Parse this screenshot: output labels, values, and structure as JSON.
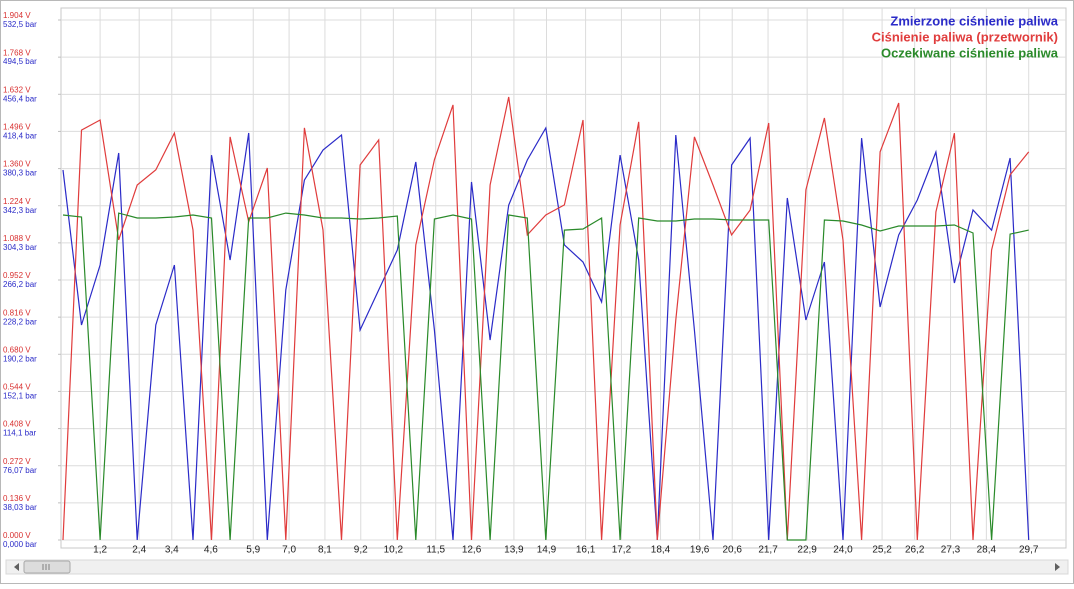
{
  "chart_data": {
    "type": "line",
    "x": [
      0.06,
      0.63,
      1.2,
      1.77,
      2.34,
      2.91,
      3.48,
      4.05,
      4.62,
      5.19,
      5.76,
      6.33,
      6.9,
      7.47,
      8.04,
      8.61,
      9.18,
      9.75,
      10.32,
      10.89,
      11.46,
      12.03,
      12.6,
      13.17,
      13.74,
      14.31,
      14.88,
      15.45,
      16.02,
      16.59,
      17.16,
      17.73,
      18.3,
      18.87,
      19.44,
      20.01,
      20.58,
      21.15,
      21.72,
      22.29,
      22.86,
      23.43,
      24.0,
      24.57,
      25.14,
      25.71,
      26.28,
      26.85,
      27.42,
      27.99,
      28.56,
      29.13,
      29.7
    ],
    "xlim": [
      0,
      30.66
    ],
    "xticks": [
      {
        "value": 1.2,
        "label": "1,2"
      },
      {
        "value": 2.4,
        "label": "2,4"
      },
      {
        "value": 3.4,
        "label": "3,4"
      },
      {
        "value": 4.6,
        "label": "4,6"
      },
      {
        "value": 5.9,
        "label": "5,9"
      },
      {
        "value": 7.0,
        "label": "7,0"
      },
      {
        "value": 8.1,
        "label": "8,1"
      },
      {
        "value": 9.2,
        "label": "9,2"
      },
      {
        "value": 10.2,
        "label": "10,2"
      },
      {
        "value": 11.5,
        "label": "11,5"
      },
      {
        "value": 12.6,
        "label": "12,6"
      },
      {
        "value": 13.9,
        "label": "13,9"
      },
      {
        "value": 14.9,
        "label": "14,9"
      },
      {
        "value": 16.1,
        "label": "16,1"
      },
      {
        "value": 17.2,
        "label": "17,2"
      },
      {
        "value": 18.4,
        "label": "18,4"
      },
      {
        "value": 19.6,
        "label": "19,6"
      },
      {
        "value": 20.6,
        "label": "20,6"
      },
      {
        "value": 21.7,
        "label": "21,7"
      },
      {
        "value": 22.9,
        "label": "22,9"
      },
      {
        "value": 24.0,
        "label": "24,0"
      },
      {
        "value": 25.2,
        "label": "25,2"
      },
      {
        "value": 26.2,
        "label": "26,2"
      },
      {
        "value": 27.3,
        "label": "27,3"
      },
      {
        "value": 28.4,
        "label": "28,4"
      },
      {
        "value": 29.7,
        "label": "29,7"
      }
    ],
    "ylim": [
      0,
      532.5
    ],
    "yticks": [
      {
        "value": 0,
        "label": "0,000 bar"
      },
      {
        "value": 38.03,
        "label": "38,03 bar"
      },
      {
        "value": 76.07,
        "label": "76,07 bar"
      },
      {
        "value": 114.1,
        "label": "114,1 bar"
      },
      {
        "value": 152.1,
        "label": "152,1 bar"
      },
      {
        "value": 190.2,
        "label": "190,2 bar"
      },
      {
        "value": 228.2,
        "label": "228,2 bar"
      },
      {
        "value": 266.2,
        "label": "266,2 bar"
      },
      {
        "value": 304.3,
        "label": "304,3 bar"
      },
      {
        "value": 342.3,
        "label": "342,3 bar"
      },
      {
        "value": 380.3,
        "label": "380,3 bar"
      },
      {
        "value": 418.4,
        "label": "418,4 bar"
      },
      {
        "value": 456.4,
        "label": "456,4 bar"
      },
      {
        "value": 494.5,
        "label": "494,5 bar"
      },
      {
        "value": 532.5,
        "label": "532,5 bar"
      }
    ],
    "y2lim": [
      0,
      1.904
    ],
    "y2ticks": [
      {
        "value": 0,
        "label": "0.000 V"
      },
      {
        "value": 0.136,
        "label": "0.136 V"
      },
      {
        "value": 0.272,
        "label": "0.272 V"
      },
      {
        "value": 0.408,
        "label": "0.408 V"
      },
      {
        "value": 0.544,
        "label": "0.544 V"
      },
      {
        "value": 0.68,
        "label": "0.680 V"
      },
      {
        "value": 0.816,
        "label": "0.816 V"
      },
      {
        "value": 0.952,
        "label": "0.952 V"
      },
      {
        "value": 1.088,
        "label": "1.088 V"
      },
      {
        "value": 1.224,
        "label": "1.224 V"
      },
      {
        "value": 1.36,
        "label": "1.360 V"
      },
      {
        "value": 1.496,
        "label": "1.496 V"
      },
      {
        "value": 1.632,
        "label": "1.632 V"
      },
      {
        "value": 1.768,
        "label": "1.768 V"
      },
      {
        "value": 1.904,
        "label": "1.904 V"
      }
    ],
    "yticks_color": "#2b2bc8",
    "y2ticks_color": "#d83030",
    "grid": true,
    "legend": "top-right",
    "series": [
      {
        "name": "Zmierzone ciśnienie paliwa",
        "color": "#2b2bc8",
        "values": [
          378.9,
          220.2,
          281.6,
          396.3,
          0,
          220.2,
          281.6,
          0,
          394.2,
          286.7,
          416.8,
          0,
          256,
          368.6,
          399.4,
          414.7,
          215,
          256,
          297,
          387.1,
          215,
          0,
          366.6,
          204.8,
          343,
          389.1,
          421.9,
          302.1,
          284.7,
          243.7,
          394.2,
          286.7,
          0,
          414.7,
          215,
          0,
          384,
          411.6,
          0,
          350.2,
          225.3,
          284.7,
          0,
          411.6,
          238.6,
          312.3,
          348.2,
          397.3,
          263.2,
          337.9,
          317.4,
          391.2,
          0
        ]
      },
      {
        "name": "Ciśnienie paliwa (przetwornik)",
        "color": "#e03c3c",
        "axis": "y2",
        "values": [
          0,
          1.501,
          1.538,
          1.099,
          1.3,
          1.355,
          1.49,
          1.135,
          0,
          1.476,
          1.165,
          1.362,
          0,
          1.509,
          1.135,
          0,
          1.373,
          1.465,
          0,
          1.08,
          1.392,
          1.593,
          0,
          1.3,
          1.622,
          1.117,
          1.19,
          1.227,
          1.538,
          0,
          1.154,
          1.531,
          0,
          0.806,
          1.476,
          1.3,
          1.117,
          1.208,
          1.527,
          0,
          1.282,
          1.545,
          1.099,
          0,
          1.421,
          1.6,
          0,
          1.201,
          1.49,
          0,
          1.062,
          1.337,
          1.421
        ]
      },
      {
        "name": "Oczekiwane ciśnienie paliwa",
        "color": "#2a8a2a",
        "values": [
          332.8,
          330.8,
          0,
          334.8,
          329.7,
          329.7,
          330.8,
          332.8,
          329.7,
          0,
          329.7,
          329.7,
          334.8,
          332.8,
          329.7,
          329.7,
          328.7,
          329.7,
          331.8,
          0,
          328.7,
          332.8,
          328.7,
          0,
          332.8,
          329.7,
          0,
          317.4,
          318.5,
          329.7,
          0,
          329.7,
          326.7,
          326.7,
          328.7,
          328.7,
          327.7,
          327.7,
          327.7,
          0,
          0,
          327.7,
          326.7,
          322.6,
          316.4,
          321.5,
          321.5,
          321.5,
          322.6,
          314.4,
          0,
          313.3,
          317.4
        ]
      }
    ]
  }
}
